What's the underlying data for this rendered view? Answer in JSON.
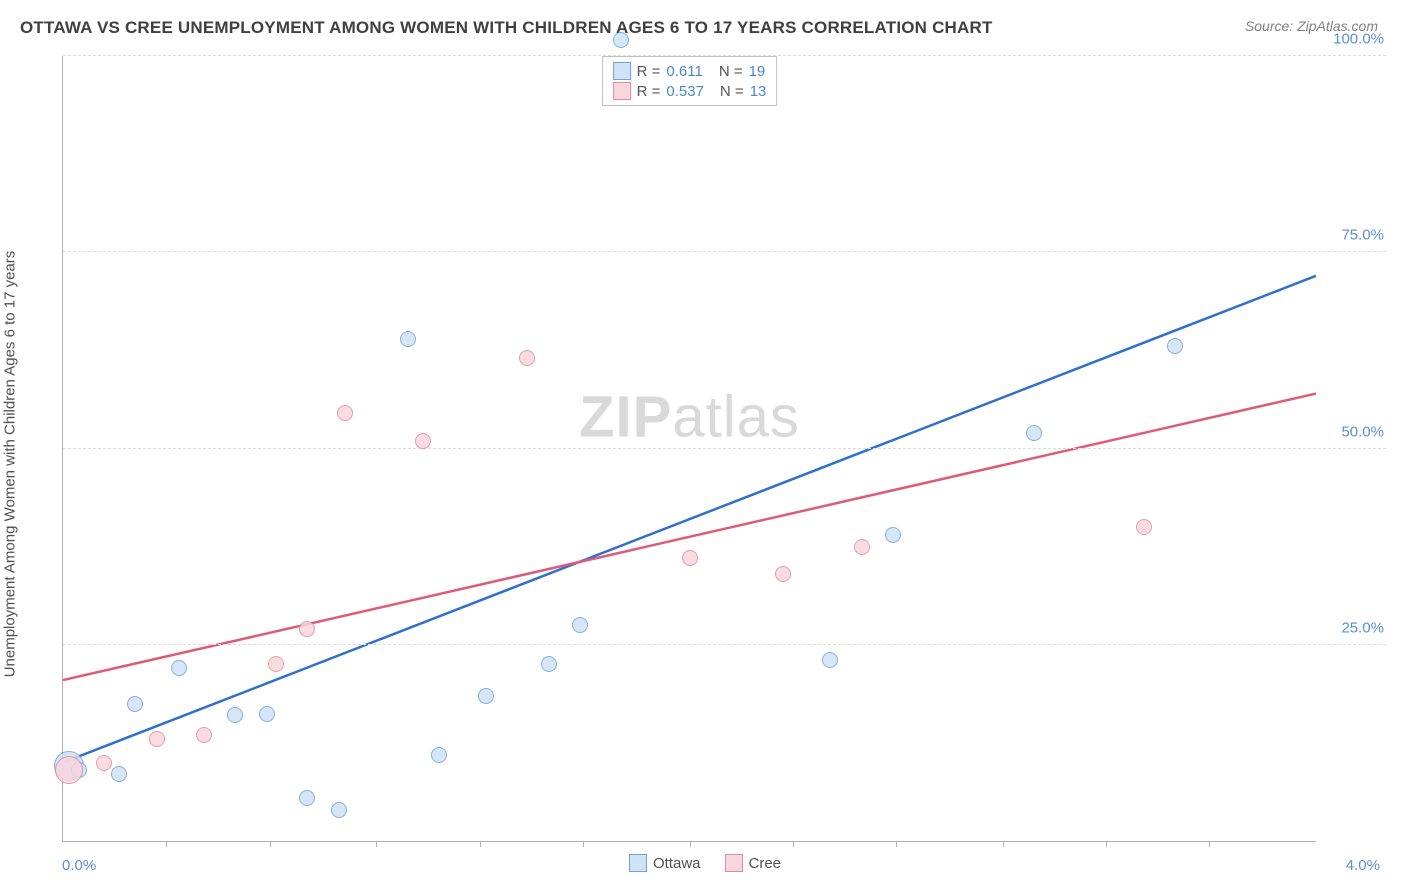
{
  "header": {
    "title": "OTTAWA VS CREE UNEMPLOYMENT AMONG WOMEN WITH CHILDREN AGES 6 TO 17 YEARS CORRELATION CHART",
    "source": "Source: ZipAtlas.com"
  },
  "chart": {
    "type": "scatter",
    "ylabel": "Unemployment Among Women with Children Ages 6 to 17 years",
    "watermark_bold": "ZIP",
    "watermark_light": "atlas",
    "xlim": [
      0.0,
      4.0
    ],
    "ylim": [
      0.0,
      100.0
    ],
    "x_axis_labels": {
      "left": "0.0%",
      "right": "4.0%"
    },
    "y_ticks": [
      25.0,
      50.0,
      75.0,
      100.0
    ],
    "y_tick_labels": [
      "25.0%",
      "50.0%",
      "75.0%",
      "100.0%"
    ],
    "x_ticks": [
      0.33,
      0.66,
      1.0,
      1.33,
      1.66,
      2.0,
      2.33,
      2.66,
      3.0,
      3.33,
      3.66
    ],
    "grid_color": "#dcdcdc",
    "axis_color": "#b0b0b0",
    "background_color": "#ffffff",
    "series": [
      {
        "name": "Ottawa",
        "fill": "#cfe2f6",
        "stroke": "#6fa3da",
        "line_color": "#2f6fd0",
        "R": "0.611",
        "N": "19",
        "trend": {
          "x1": 0.0,
          "y1": 10.0,
          "x2": 4.0,
          "y2": 72.0
        },
        "points": [
          {
            "x": 0.02,
            "y": 9.5,
            "r": 15
          },
          {
            "x": 0.05,
            "y": 9.0,
            "r": 8
          },
          {
            "x": 0.18,
            "y": 8.5,
            "r": 8
          },
          {
            "x": 0.23,
            "y": 17.5,
            "r": 8
          },
          {
            "x": 0.37,
            "y": 22.0,
            "r": 8
          },
          {
            "x": 0.55,
            "y": 16.0,
            "r": 8
          },
          {
            "x": 0.65,
            "y": 16.2,
            "r": 8
          },
          {
            "x": 0.78,
            "y": 5.5,
            "r": 8
          },
          {
            "x": 0.88,
            "y": 4.0,
            "r": 8
          },
          {
            "x": 1.1,
            "y": 64.0,
            "r": 8
          },
          {
            "x": 1.2,
            "y": 11.0,
            "r": 8
          },
          {
            "x": 1.35,
            "y": 18.5,
            "r": 8
          },
          {
            "x": 1.55,
            "y": 22.5,
            "r": 8
          },
          {
            "x": 1.65,
            "y": 27.5,
            "r": 8
          },
          {
            "x": 1.78,
            "y": 102.0,
            "r": 8
          },
          {
            "x": 2.45,
            "y": 23.0,
            "r": 8
          },
          {
            "x": 2.65,
            "y": 39.0,
            "r": 8
          },
          {
            "x": 3.1,
            "y": 52.0,
            "r": 8
          },
          {
            "x": 3.55,
            "y": 63.0,
            "r": 8
          }
        ]
      },
      {
        "name": "Cree",
        "fill": "#f7d6de",
        "stroke": "#e08ca0",
        "line_color": "#e05a78",
        "R": "0.537",
        "N": "13",
        "trend": {
          "x1": 0.0,
          "y1": 20.5,
          "x2": 4.0,
          "y2": 57.0
        },
        "points": [
          {
            "x": 0.02,
            "y": 9.0,
            "r": 14
          },
          {
            "x": 0.13,
            "y": 10.0,
            "r": 8
          },
          {
            "x": 0.3,
            "y": 13.0,
            "r": 8
          },
          {
            "x": 0.45,
            "y": 13.5,
            "r": 8
          },
          {
            "x": 0.68,
            "y": 22.5,
            "r": 8
          },
          {
            "x": 0.78,
            "y": 27.0,
            "r": 8
          },
          {
            "x": 0.9,
            "y": 54.5,
            "r": 8
          },
          {
            "x": 1.15,
            "y": 51.0,
            "r": 8
          },
          {
            "x": 1.48,
            "y": 61.5,
            "r": 8
          },
          {
            "x": 2.0,
            "y": 36.0,
            "r": 8
          },
          {
            "x": 2.3,
            "y": 34.0,
            "r": 8
          },
          {
            "x": 2.55,
            "y": 37.5,
            "r": 8
          },
          {
            "x": 3.45,
            "y": 40.0,
            "r": 8
          }
        ]
      }
    ],
    "legend_bottom": [
      {
        "label": "Ottawa",
        "fill": "#cfe2f6",
        "stroke": "#6fa3da"
      },
      {
        "label": "Cree",
        "fill": "#f7d6de",
        "stroke": "#e08ca0"
      }
    ]
  }
}
